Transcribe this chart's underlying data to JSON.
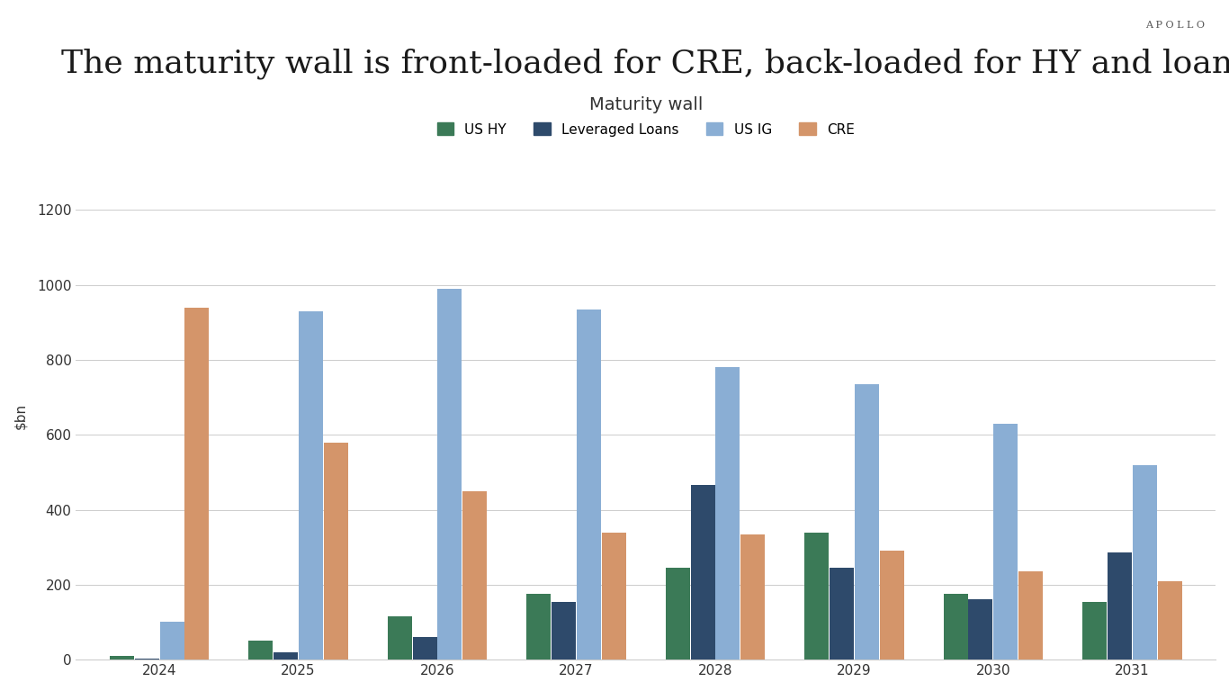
{
  "title": "The maturity wall is front-loaded for CRE, back-loaded for HY and loans, and flat for IG",
  "subtitle": "Maturity wall",
  "ylabel": "$bn",
  "watermark": "APOLLO",
  "years": [
    2024,
    2025,
    2026,
    2027,
    2028,
    2029,
    2030,
    2031
  ],
  "series": {
    "US HY": [
      10,
      50,
      115,
      175,
      245,
      340,
      175,
      155
    ],
    "Leveraged Loans": [
      2,
      20,
      60,
      155,
      465,
      245,
      160,
      285
    ],
    "US IG": [
      100,
      930,
      990,
      935,
      780,
      735,
      630,
      520
    ],
    "CRE": [
      940,
      580,
      450,
      340,
      335,
      290,
      235,
      210
    ]
  },
  "colors": {
    "US HY": "#3b7a57",
    "Leveraged Loans": "#2e4a6b",
    "US IG": "#8aaed4",
    "CRE": "#d4956a"
  },
  "ylim": [
    0,
    1300
  ],
  "yticks": [
    0,
    200,
    400,
    600,
    800,
    1000,
    1200
  ],
  "background_color": "#ffffff",
  "title_fontsize": 26,
  "subtitle_fontsize": 14,
  "legend_fontsize": 11,
  "ylabel_fontsize": 11,
  "tick_fontsize": 11,
  "bar_width": 0.18
}
